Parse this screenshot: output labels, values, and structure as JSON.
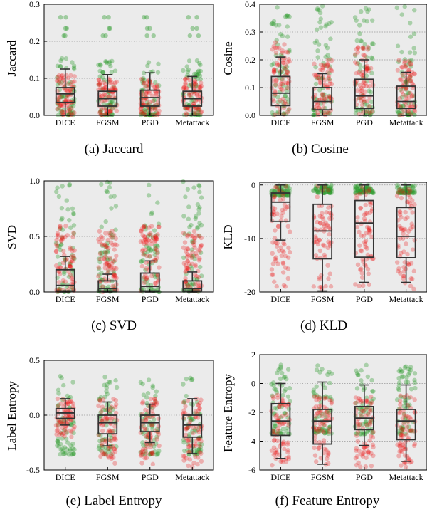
{
  "figure": {
    "categories": [
      "DICE",
      "FGSM",
      "PGD",
      "Metattack"
    ],
    "colors": {
      "panel_background": "#ebebeb",
      "benign_points": "#2e9b2e",
      "adversarial_points": "#ee1111",
      "box": "#333333"
    }
  },
  "chart_data": [
    {
      "type": "box",
      "caption": "(a) Jaccard",
      "ylabel": "Jaccard",
      "ylim": [
        0,
        0.3
      ],
      "yticks": [
        0.0,
        0.1,
        0.2,
        0.3
      ],
      "ytick_labels": [
        "0.0",
        "0.1",
        "0.2",
        "0.3"
      ],
      "grid": true,
      "categories": [
        "DICE",
        "FGSM",
        "PGD",
        "Metattack"
      ],
      "boxes": [
        {
          "low": 0.0,
          "q1": 0.035,
          "median": 0.058,
          "q3": 0.075,
          "high": 0.125
        },
        {
          "low": 0.0,
          "q1": 0.025,
          "median": 0.045,
          "q3": 0.065,
          "high": 0.11
        },
        {
          "low": 0.0,
          "q1": 0.025,
          "median": 0.048,
          "q3": 0.068,
          "high": 0.115
        },
        {
          "low": 0.0,
          "q1": 0.025,
          "median": 0.045,
          "q3": 0.065,
          "high": 0.105
        }
      ],
      "scatter": [
        {
          "spread_green": [
            0.0,
            0.155
          ],
          "spread_red": [
            0.0,
            0.11
          ],
          "green_outliers": [
            0.215,
            0.235,
            0.265
          ]
        },
        {
          "spread_green": [
            0.0,
            0.155
          ],
          "spread_red": [
            0.0,
            0.1
          ],
          "green_outliers": [
            0.215,
            0.235,
            0.265
          ]
        },
        {
          "spread_green": [
            0.0,
            0.155
          ],
          "spread_red": [
            0.0,
            0.1
          ],
          "green_outliers": [
            0.215,
            0.235,
            0.265
          ]
        },
        {
          "spread_green": [
            0.0,
            0.155
          ],
          "spread_red": [
            0.0,
            0.1
          ],
          "green_outliers": [
            0.215,
            0.235,
            0.265
          ]
        }
      ]
    },
    {
      "type": "box",
      "caption": "(b) Cosine",
      "ylabel": "Cosine",
      "ylim": [
        0,
        0.4
      ],
      "yticks": [
        0.0,
        0.1,
        0.2,
        0.3,
        0.4
      ],
      "ytick_labels": [
        "0.0",
        "0.1",
        "0.2",
        "0.3",
        "0.4"
      ],
      "grid": true,
      "categories": [
        "DICE",
        "FGSM",
        "PGD",
        "Metattack"
      ],
      "boxes": [
        {
          "low": 0.0,
          "q1": 0.035,
          "median": 0.08,
          "q3": 0.14,
          "high": 0.21
        },
        {
          "low": 0.0,
          "q1": 0.02,
          "median": 0.05,
          "q3": 0.1,
          "high": 0.15
        },
        {
          "low": 0.0,
          "q1": 0.025,
          "median": 0.07,
          "q3": 0.13,
          "high": 0.2
        },
        {
          "low": 0.0,
          "q1": 0.025,
          "median": 0.05,
          "q3": 0.105,
          "high": 0.155
        }
      ],
      "scatter": [
        {
          "spread_green": [
            0.0,
            0.4
          ],
          "spread_red": [
            0.0,
            0.27
          ],
          "green_outliers": []
        },
        {
          "spread_green": [
            0.0,
            0.4
          ],
          "spread_red": [
            0.0,
            0.2
          ],
          "green_outliers": []
        },
        {
          "spread_green": [
            0.0,
            0.4
          ],
          "spread_red": [
            0.0,
            0.25
          ],
          "green_outliers": []
        },
        {
          "spread_green": [
            0.0,
            0.4
          ],
          "spread_red": [
            0.0,
            0.2
          ],
          "green_outliers": []
        }
      ]
    },
    {
      "type": "box",
      "caption": "(c) SVD",
      "ylabel": "SVD",
      "ylim": [
        0,
        1.0
      ],
      "yticks": [
        0.0,
        0.5,
        1.0
      ],
      "ytick_labels": [
        "0.0",
        "0.5",
        "1.0"
      ],
      "grid": true,
      "categories": [
        "DICE",
        "FGSM",
        "PGD",
        "Metattack"
      ],
      "boxes": [
        {
          "low": 0.0,
          "q1": 0.01,
          "median": 0.06,
          "q3": 0.2,
          "high": 0.32
        },
        {
          "low": 0.0,
          "q1": 0.01,
          "median": 0.03,
          "q3": 0.1,
          "high": 0.16
        },
        {
          "low": 0.0,
          "q1": 0.01,
          "median": 0.05,
          "q3": 0.17,
          "high": 0.28
        },
        {
          "low": 0.0,
          "q1": 0.01,
          "median": 0.03,
          "q3": 0.1,
          "high": 0.18
        }
      ],
      "scatter": [
        {
          "spread_green": [
            0.0,
            1.0
          ],
          "spread_red": [
            0.0,
            0.6
          ],
          "green_outliers": []
        },
        {
          "spread_green": [
            0.0,
            1.0
          ],
          "spread_red": [
            0.0,
            0.55
          ],
          "green_outliers": []
        },
        {
          "spread_green": [
            0.0,
            1.0
          ],
          "spread_red": [
            0.0,
            0.6
          ],
          "green_outliers": []
        },
        {
          "spread_green": [
            0.0,
            1.0
          ],
          "spread_red": [
            0.0,
            0.55
          ],
          "green_outliers": []
        }
      ]
    },
    {
      "type": "box",
      "caption": "(d) KLD",
      "ylabel": "KLD",
      "ylim": [
        -20,
        0.5
      ],
      "yticks": [
        -20,
        -10,
        0
      ],
      "ytick_labels": [
        "-20",
        "-10",
        "0"
      ],
      "grid": true,
      "categories": [
        "DICE",
        "FGSM",
        "PGD",
        "Metattack"
      ],
      "boxes": [
        {
          "low": -10.3,
          "q1": -6.8,
          "median": -3.2,
          "q3": -1.5,
          "high": 0
        },
        {
          "low": -19.8,
          "q1": -13.8,
          "median": -8.6,
          "q3": -3.6,
          "high": 0
        },
        {
          "low": -18.2,
          "q1": -13.5,
          "median": -7.1,
          "q3": -2.9,
          "high": 0
        },
        {
          "low": -18.2,
          "q1": -13.6,
          "median": -9.6,
          "q3": -4.2,
          "high": 0
        }
      ],
      "scatter": [
        {
          "spread_green": [
            -2.0,
            0.0
          ],
          "spread_red": [
            -19.0,
            0.0
          ],
          "green_outliers": []
        },
        {
          "spread_green": [
            -1.5,
            0.0
          ],
          "spread_red": [
            -19.5,
            0.0
          ],
          "green_outliers": []
        },
        {
          "spread_green": [
            -1.5,
            0.0
          ],
          "spread_red": [
            -19.5,
            0.0
          ],
          "green_outliers": []
        },
        {
          "spread_green": [
            -1.5,
            0.0
          ],
          "spread_red": [
            -19.5,
            0.0
          ],
          "green_outliers": []
        }
      ]
    },
    {
      "type": "box",
      "caption": "(e) Label Entropy",
      "ylabel": "Label Entropy",
      "ylim": [
        -0.5,
        0.5
      ],
      "yticks": [
        -0.5,
        0.0,
        0.5
      ],
      "ytick_labels": [
        "-0.5",
        "0.0",
        "0.5"
      ],
      "grid": true,
      "categories": [
        "DICE",
        "FGSM",
        "PGD",
        "Metattack"
      ],
      "boxes": [
        {
          "low": -0.09,
          "q1": -0.03,
          "median": 0.02,
          "q3": 0.06,
          "high": 0.15
        },
        {
          "low": -0.28,
          "q1": -0.17,
          "median": -0.07,
          "q3": 0.0,
          "high": 0.12
        },
        {
          "low": -0.25,
          "q1": -0.15,
          "median": -0.07,
          "q3": 0.0,
          "high": 0.1
        },
        {
          "low": -0.35,
          "q1": -0.2,
          "median": -0.09,
          "q3": 0.0,
          "high": 0.15
        }
      ],
      "scatter": [
        {
          "spread_green": [
            -0.36,
            0.37
          ],
          "spread_red": [
            -0.2,
            0.15
          ],
          "green_outliers": []
        },
        {
          "spread_green": [
            -0.36,
            0.35
          ],
          "spread_red": [
            -0.45,
            0.15
          ],
          "green_outliers": []
        },
        {
          "spread_green": [
            -0.36,
            0.35
          ],
          "spread_red": [
            -0.45,
            0.15
          ],
          "green_outliers": []
        },
        {
          "spread_green": [
            -0.36,
            0.36
          ],
          "spread_red": [
            -0.47,
            0.15
          ],
          "green_outliers": []
        }
      ]
    },
    {
      "type": "box",
      "caption": "(f) Feature Entropy",
      "ylabel": "Feature Entropy",
      "ylim": [
        -6,
        2
      ],
      "yticks": [
        -6,
        -4,
        -2,
        0,
        2
      ],
      "ytick_labels": [
        "-6",
        "-4",
        "-2",
        "0",
        "2"
      ],
      "grid": true,
      "categories": [
        "DICE",
        "FGSM",
        "PGD",
        "Metattack"
      ],
      "boxes": [
        {
          "low": -5.2,
          "q1": -3.6,
          "median": -2.6,
          "q3": -1.4,
          "high": 0.0
        },
        {
          "low": -5.6,
          "q1": -4.2,
          "median": -2.6,
          "q3": -1.8,
          "high": 0.1
        },
        {
          "low": -4.3,
          "q1": -3.2,
          "median": -2.4,
          "q3": -1.6,
          "high": -0.1
        },
        {
          "low": -5.4,
          "q1": -3.9,
          "median": -2.6,
          "q3": -1.8,
          "high": -0.1
        }
      ],
      "scatter": [
        {
          "spread_green": [
            -3.5,
            1.3
          ],
          "spread_red": [
            -5.8,
            -0.8
          ],
          "green_outliers": []
        },
        {
          "spread_green": [
            -3.5,
            1.3
          ],
          "spread_red": [
            -5.8,
            -0.8
          ],
          "green_outliers": []
        },
        {
          "spread_green": [
            -3.5,
            1.3
          ],
          "spread_red": [
            -5.8,
            -0.8
          ],
          "green_outliers": []
        },
        {
          "spread_green": [
            -3.5,
            1.3
          ],
          "spread_red": [
            -5.8,
            -0.8
          ],
          "green_outliers": []
        }
      ]
    }
  ]
}
